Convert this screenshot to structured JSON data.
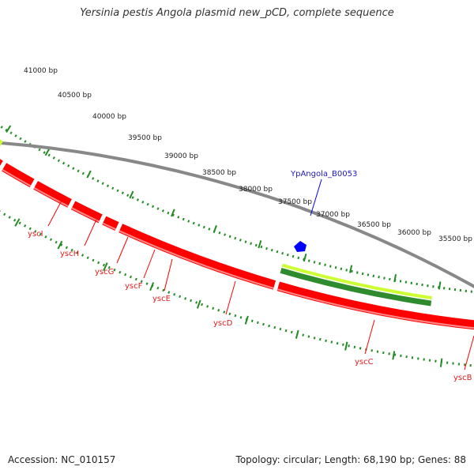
{
  "title": "Yersinia pestis Angola plasmid new_pCD, complete sequence",
  "footer": {
    "accession": "Accession: NC_010157",
    "summary": "Topology: circular; Length: 68,190 bp; Genes: 88"
  },
  "ruler_labels": [
    "41000 bp",
    "40500 bp",
    "40000 bp",
    "39500 bp",
    "39000 bp",
    "38500 bp",
    "38000 bp",
    "37500 bp",
    "37000 bp",
    "36500 bp",
    "36000 bp",
    "35500 bp"
  ],
  "genes": [
    "yscI",
    "yscH",
    "yscG",
    "yscF",
    "yscE",
    "yscD",
    "yscC",
    "yscB"
  ],
  "feature_label": "YpAngola_B0053",
  "colors": {
    "forward_cds": "#ff0000",
    "reverse_cds": "#ccff33",
    "dark_feature": "#2e8b2e",
    "backbone": "#888888",
    "tick": "#228b22",
    "feature": "#0000ff"
  }
}
